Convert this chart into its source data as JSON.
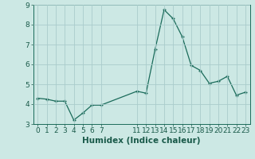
{
  "xlabel": "Humidex (Indice chaleur)",
  "ylabel": "",
  "background_color": "#cce8e4",
  "grid_color": "#aacccc",
  "line_color": "#1a6b5a",
  "marker_color": "#1a6b5a",
  "x_values": [
    0,
    1,
    2,
    3,
    4,
    5,
    6,
    7,
    11,
    12,
    13,
    14,
    15,
    16,
    17,
    18,
    19,
    20,
    21,
    22,
    23
  ],
  "y_values": [
    4.3,
    4.25,
    4.15,
    4.15,
    3.2,
    3.55,
    3.95,
    3.95,
    4.65,
    4.55,
    6.75,
    8.75,
    8.3,
    7.4,
    5.95,
    5.7,
    5.05,
    5.15,
    5.4,
    4.45,
    4.6
  ],
  "ylim": [
    3.0,
    9.0
  ],
  "xlim": [
    -0.5,
    23.5
  ],
  "yticks": [
    3,
    4,
    5,
    6,
    7,
    8,
    9
  ],
  "xticks": [
    0,
    1,
    2,
    3,
    4,
    5,
    6,
    7,
    11,
    12,
    13,
    14,
    15,
    16,
    17,
    18,
    19,
    20,
    21,
    22,
    23
  ],
  "tick_fontsize": 6.5,
  "xlabel_fontsize": 7.5,
  "xlabel_fontweight": "bold"
}
